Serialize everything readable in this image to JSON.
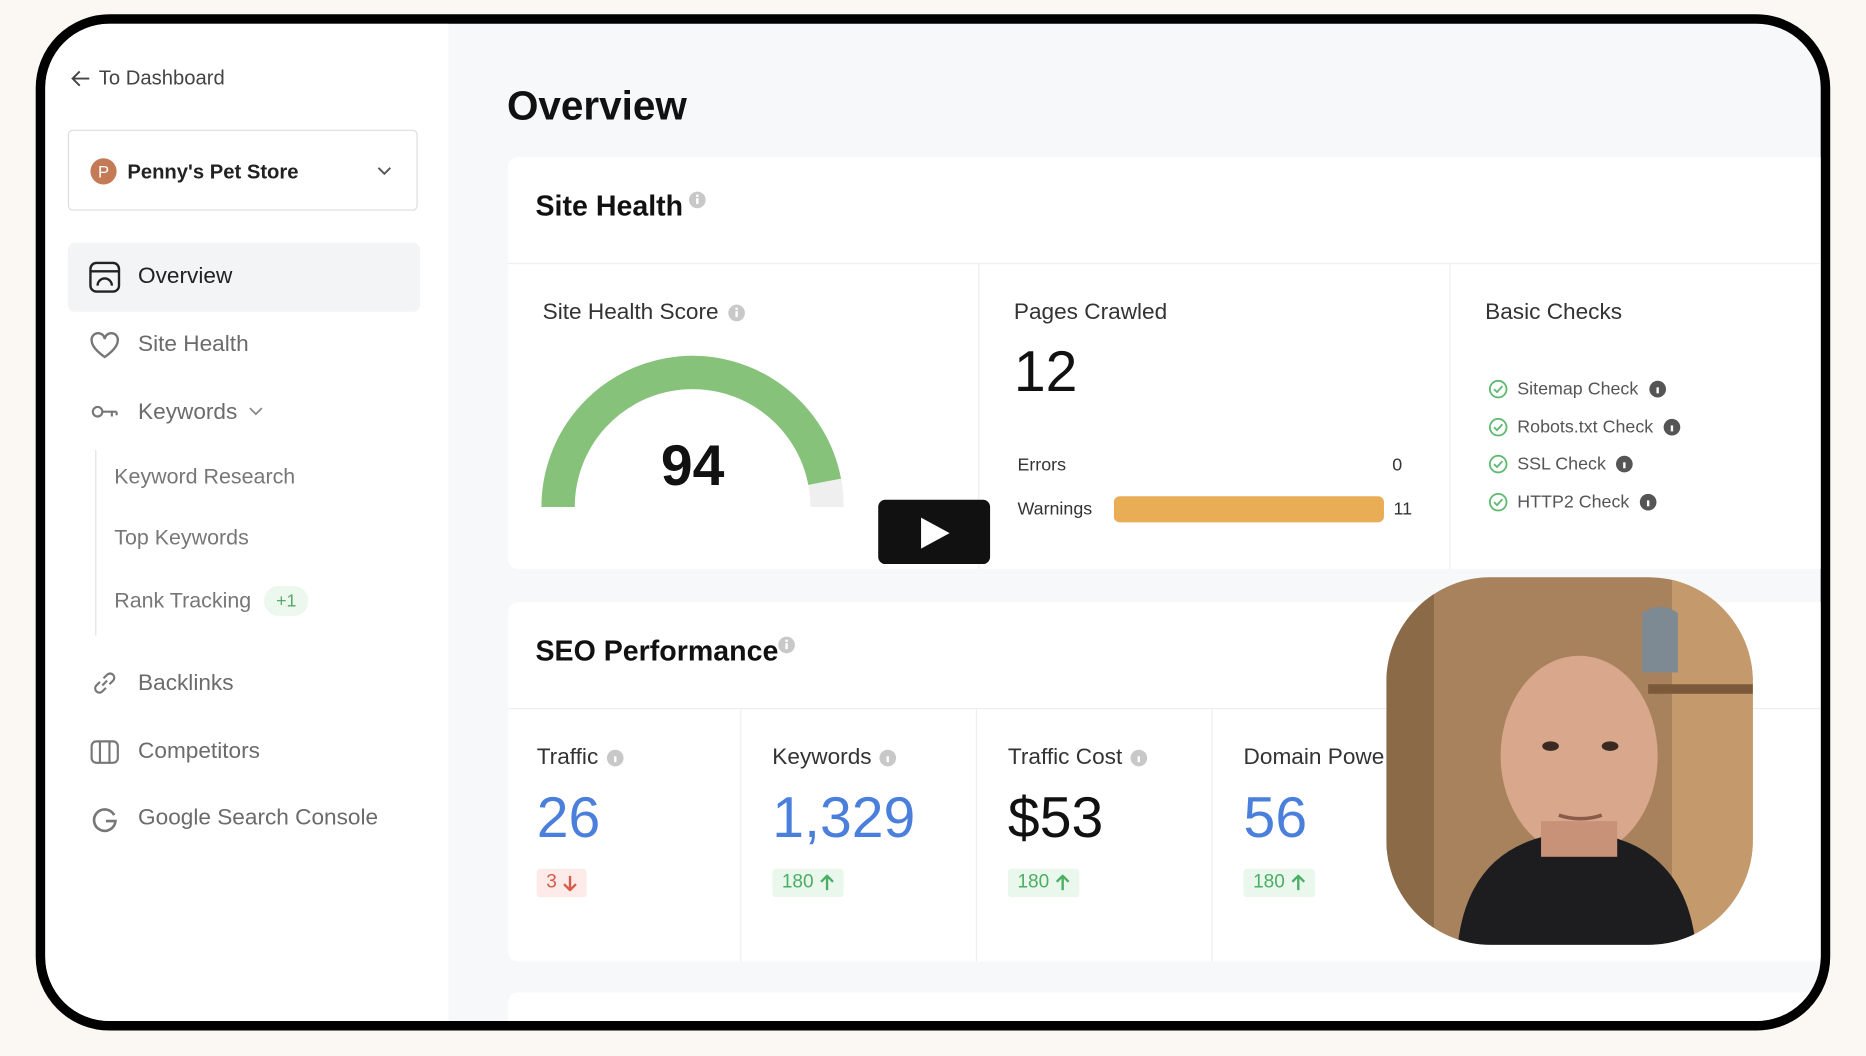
{
  "sidebar": {
    "back_link": "To Dashboard",
    "project": "Penny's Pet Store",
    "project_initial": "P",
    "nav": [
      {
        "label": "Overview"
      },
      {
        "label": "Site Health"
      },
      {
        "label": "Keywords"
      }
    ],
    "keywords_sub": [
      {
        "label": "Keyword Research"
      },
      {
        "label": "Top Keywords"
      },
      {
        "label": "Rank Tracking",
        "badge": "+1"
      }
    ],
    "nav_bottom": [
      {
        "label": "Backlinks"
      },
      {
        "label": "Competitors"
      },
      {
        "label": "Google Search Console"
      }
    ]
  },
  "page_title": "Overview",
  "site_health": {
    "title": "Site Health",
    "score_label": "Site Health Score",
    "score": 94,
    "pages_label": "Pages Crawled",
    "pages": 12,
    "errors_label": "Errors",
    "errors": 0,
    "warnings_label": "Warnings",
    "warnings": 11,
    "checks_title": "Basic Checks",
    "checks": [
      "Sitemap Check",
      "Robots.txt Check",
      "SSL Check",
      "HTTP2 Check"
    ]
  },
  "seo": {
    "title": "SEO Performance",
    "metrics": [
      {
        "label": "Traffic",
        "value": "26",
        "delta": 3,
        "direction": "down"
      },
      {
        "label": "Keywords",
        "value": "1,329",
        "delta": 180,
        "direction": "up"
      },
      {
        "label": "Traffic Cost",
        "value": "$53",
        "delta": 180,
        "direction": "up"
      },
      {
        "label": "Domain Powe",
        "value": "56",
        "delta": 180,
        "direction": "up"
      }
    ]
  }
}
